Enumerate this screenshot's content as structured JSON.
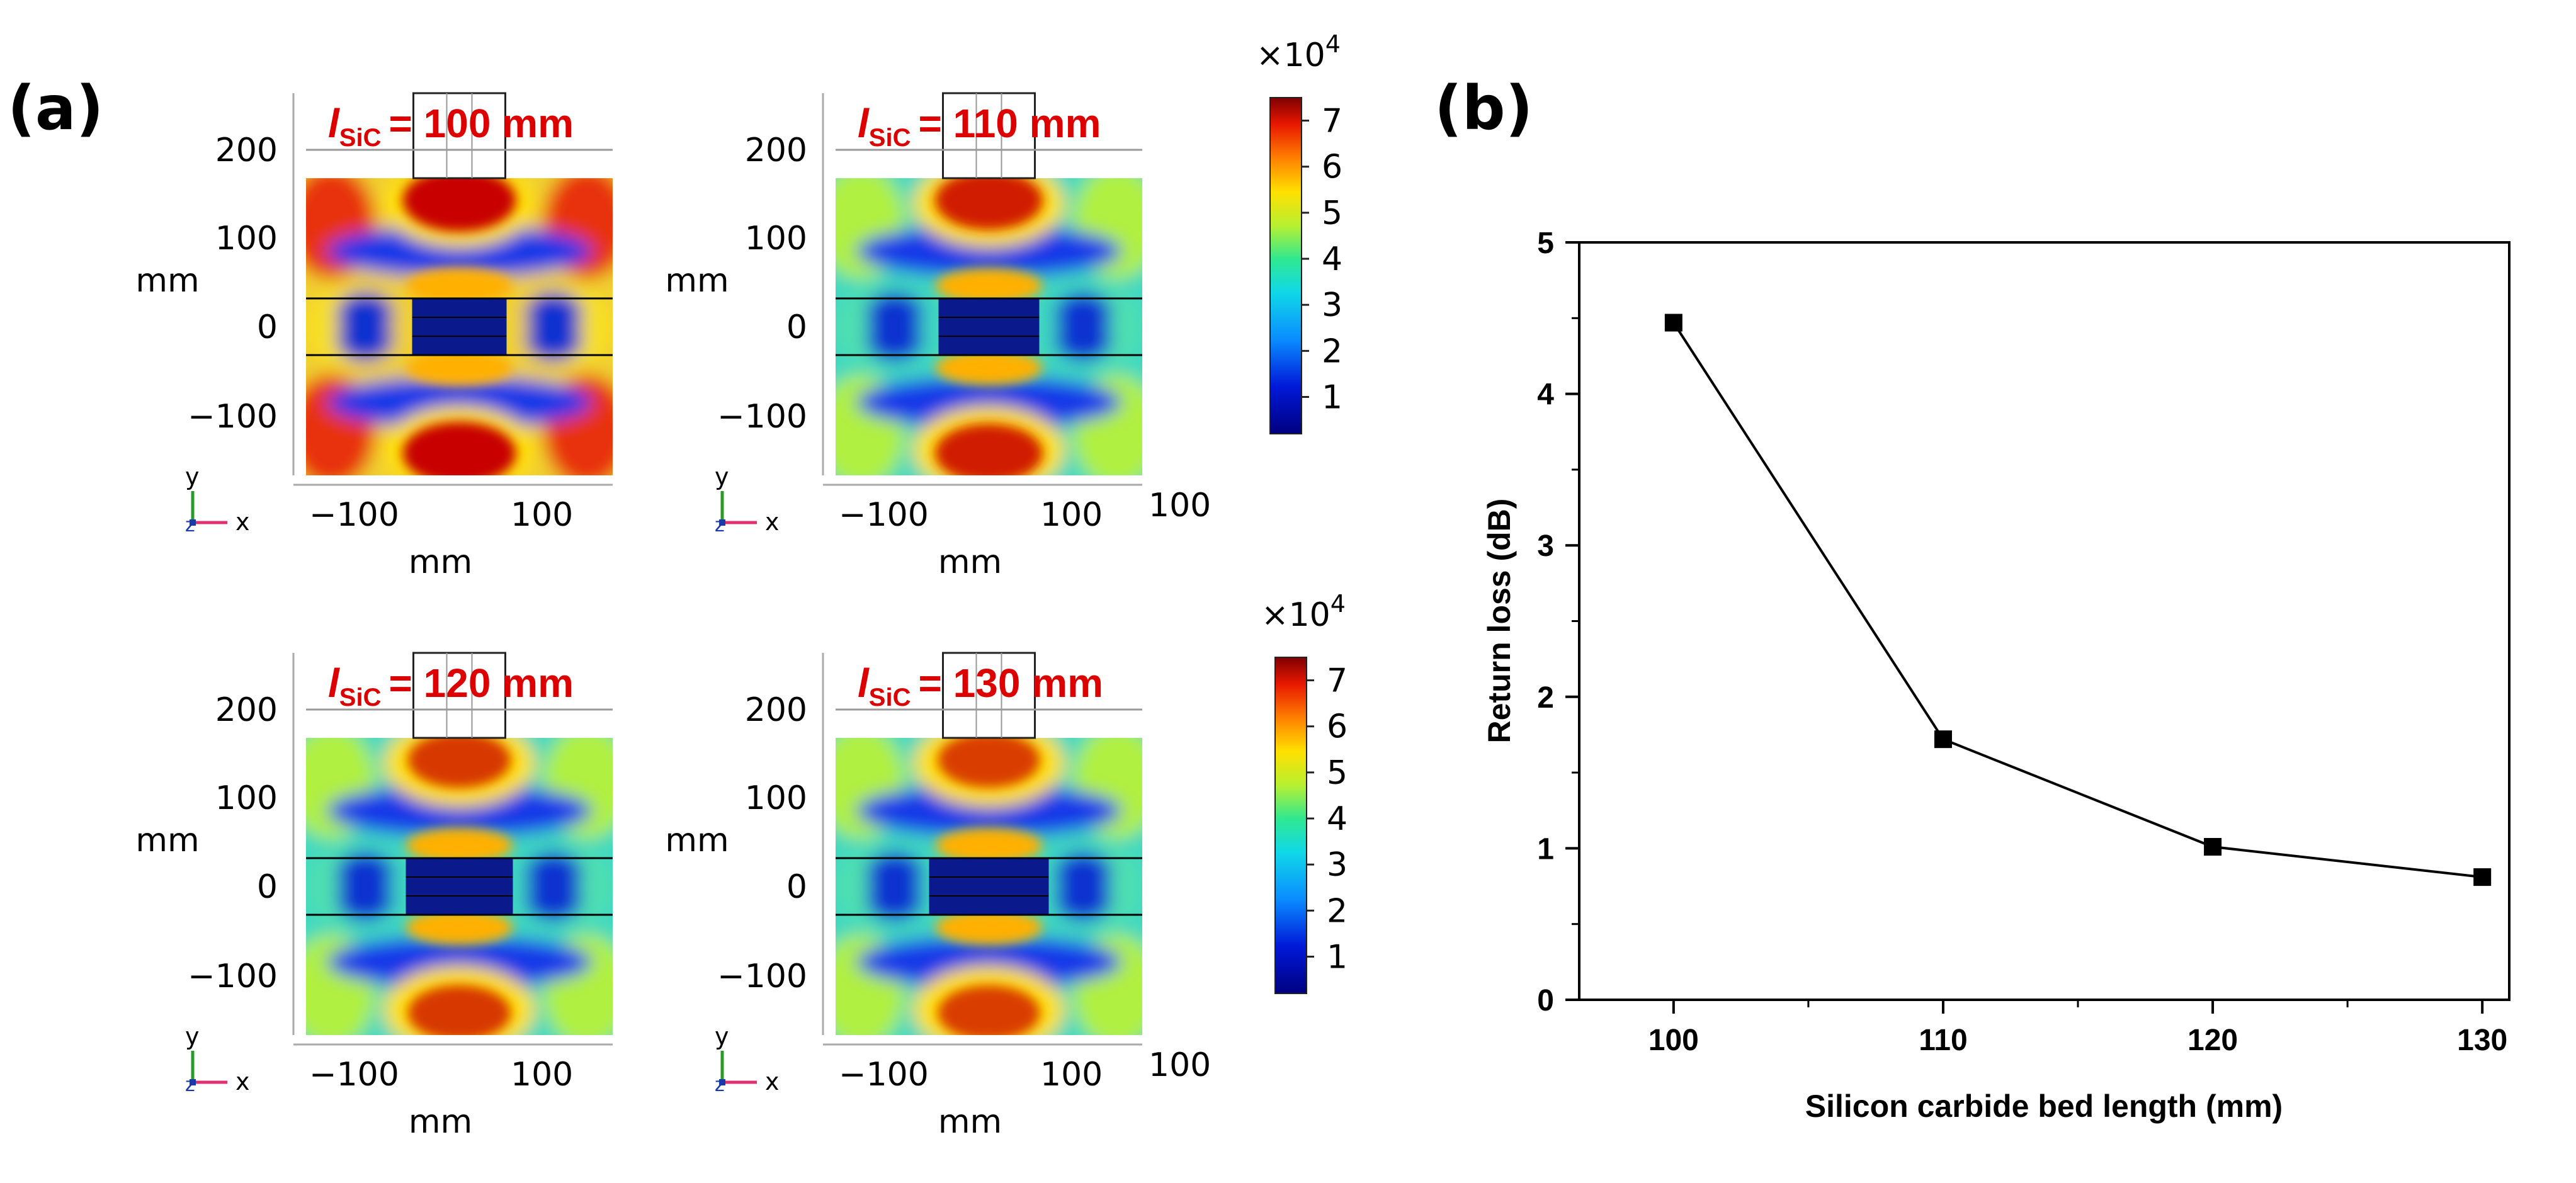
{
  "panel_labels": {
    "a": "(a)",
    "b": "(b)"
  },
  "field_maps": {
    "axis_unit": "mm",
    "x_ticks": [
      "−100",
      "100"
    ],
    "y_ticks": [
      "200",
      "100",
      "0",
      "−100"
    ],
    "extra_x_label": "100",
    "triad": {
      "y": "y",
      "x": "x",
      "z": "z"
    },
    "plots": [
      {
        "label_symbol": "l",
        "label_sub": "SiC",
        "label_value": "= 100 mm",
        "hot_level": 1.0
      },
      {
        "label_symbol": "l",
        "label_sub": "SiC",
        "label_value": "= 110 mm",
        "hot_level": 0.85
      },
      {
        "label_symbol": "l",
        "label_sub": "SiC",
        "label_value": "= 120 mm",
        "hot_level": 0.72
      },
      {
        "label_symbol": "l",
        "label_sub": "SiC",
        "label_value": "= 130 mm",
        "hot_level": 0.7
      }
    ],
    "colorbar": {
      "multiplier_base": "×10",
      "multiplier_exp": "4",
      "ticks": [
        "7",
        "6",
        "5",
        "4",
        "3",
        "2",
        "1"
      ],
      "range": [
        0.2,
        7.5
      ]
    }
  },
  "chart_data": {
    "type": "line",
    "title": "",
    "xlabel": "Silicon carbide bed length (mm)",
    "ylabel": "Return loss (dB)",
    "x": [
      100,
      110,
      120,
      130
    ],
    "series": [
      {
        "name": "Return loss",
        "values": [
          4.47,
          1.72,
          1.01,
          0.81
        ]
      }
    ],
    "xlim": [
      96.5,
      131
    ],
    "ylim": [
      0,
      5
    ],
    "xticks": [
      100,
      110,
      120,
      130
    ],
    "yticks": [
      0,
      1,
      2,
      3,
      4,
      5
    ],
    "marker": "square",
    "colors": {
      "line": "#000000",
      "marker": "#000000"
    }
  },
  "colors": {
    "label_red": "#dd0000",
    "hot": "#c00000",
    "cold": "#0a1a8c"
  }
}
